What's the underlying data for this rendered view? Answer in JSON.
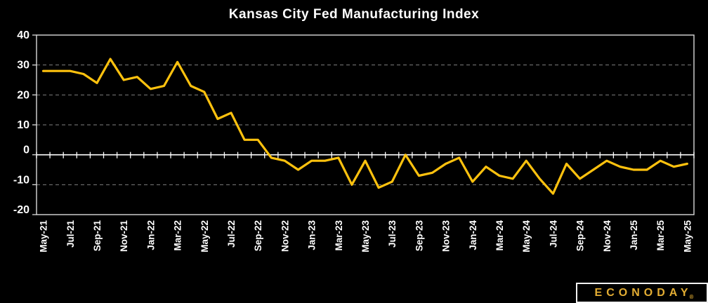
{
  "title": "Kansas City Fed Manufacturing Index",
  "branding": {
    "logo_text": "ECONODAY",
    "registered_mark": "®"
  },
  "colors": {
    "background": "#000000",
    "line": "#ffc20e",
    "gridline": "#7f7f7f",
    "zero_axis": "#ffffff",
    "frame": "#d9d9d9",
    "label_text": "#ffffff",
    "logo_gold": "#e3ad33"
  },
  "chart_data": {
    "type": "line",
    "title": "Kansas City Fed Manufacturing Index",
    "xlabel": "",
    "ylabel": "",
    "ylim": [
      -20,
      40
    ],
    "y_ticks": [
      40,
      30,
      20,
      10,
      0,
      -10,
      -20
    ],
    "dashed_gridlines_at": [
      30,
      20,
      10,
      -10
    ],
    "zero_axis_solid": true,
    "legend": "none",
    "x_tick_interval": 2,
    "x": [
      "May-21",
      "Jun-21",
      "Jul-21",
      "Aug-21",
      "Sep-21",
      "Oct-21",
      "Nov-21",
      "Dec-21",
      "Jan-22",
      "Feb-22",
      "Mar-22",
      "Apr-22",
      "May-22",
      "Jun-22",
      "Jul-22",
      "Aug-22",
      "Sep-22",
      "Oct-22",
      "Nov-22",
      "Dec-22",
      "Jan-23",
      "Feb-23",
      "Mar-23",
      "Apr-23",
      "May-23",
      "Jun-23",
      "Jul-23",
      "Aug-23",
      "Sep-23",
      "Oct-23",
      "Nov-23",
      "Dec-23",
      "Jan-24",
      "Feb-24",
      "Mar-24",
      "Apr-24",
      "May-24",
      "Jun-24",
      "Jul-24",
      "Aug-24",
      "Sep-24",
      "Oct-24",
      "Nov-24",
      "Dec-24",
      "Jan-25",
      "Feb-25",
      "Mar-25",
      "Apr-25",
      "May-25"
    ],
    "values": [
      28,
      28,
      28,
      27,
      24,
      32,
      25,
      26,
      22,
      23,
      31,
      23,
      21,
      12,
      14,
      5,
      5,
      -1,
      -2,
      -5,
      -2,
      -2,
      -1,
      -10,
      -2,
      -11,
      -9,
      0,
      -7,
      -6,
      -3,
      -1,
      -9,
      -4,
      -7,
      -8,
      -2,
      -8,
      -13,
      -3,
      -8,
      -5,
      -2,
      -4,
      -5,
      -5,
      -2,
      -4,
      -3
    ]
  }
}
